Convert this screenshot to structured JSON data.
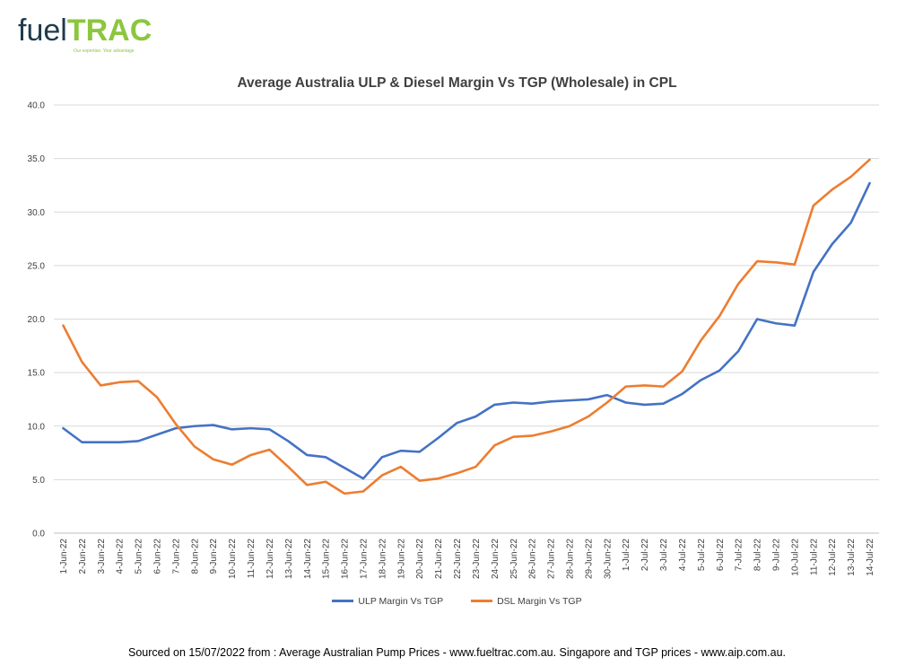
{
  "logo": {
    "text_a": "fuel",
    "text_b": "TRAC",
    "tagline": "Our expertise. Your advantage"
  },
  "colors": {
    "ulp": "#4472c4",
    "dsl": "#ed7d31",
    "grid": "#d9d9d9",
    "text": "#404040"
  },
  "chart_data": {
    "type": "line",
    "title": "Average Australia ULP & Diesel Margin Vs TGP (Wholesale) in CPL",
    "xlabel": "",
    "ylabel": "",
    "ylim": [
      0,
      40
    ],
    "yticks": [
      "0.0",
      "5.0",
      "10.0",
      "15.0",
      "20.0",
      "25.0",
      "30.0",
      "35.0",
      "40.0"
    ],
    "grid": true,
    "legend_position": "bottom",
    "categories": [
      "1-Jun-22",
      "2-Jun-22",
      "3-Jun-22",
      "4-Jun-22",
      "5-Jun-22",
      "6-Jun-22",
      "7-Jun-22",
      "8-Jun-22",
      "9-Jun-22",
      "10-Jun-22",
      "11-Jun-22",
      "12-Jun-22",
      "13-Jun-22",
      "14-Jun-22",
      "15-Jun-22",
      "16-Jun-22",
      "17-Jun-22",
      "18-Jun-22",
      "19-Jun-22",
      "20-Jun-22",
      "21-Jun-22",
      "22-Jun-22",
      "23-Jun-22",
      "24-Jun-22",
      "25-Jun-22",
      "26-Jun-22",
      "27-Jun-22",
      "28-Jun-22",
      "29-Jun-22",
      "30-Jun-22",
      "1-Jul-22",
      "2-Jul-22",
      "3-Jul-22",
      "4-Jul-22",
      "5-Jul-22",
      "6-Jul-22",
      "7-Jul-22",
      "8-Jul-22",
      "9-Jul-22",
      "10-Jul-22",
      "11-Jul-22",
      "12-Jul-22",
      "13-Jul-22",
      "14-Jul-22"
    ],
    "series": [
      {
        "name": "ULP Margin Vs TGP",
        "color": "#4472c4",
        "values": [
          9.8,
          8.5,
          8.5,
          8.5,
          8.6,
          9.2,
          9.8,
          10.0,
          10.1,
          9.7,
          9.8,
          9.7,
          8.6,
          7.3,
          7.1,
          6.1,
          5.1,
          7.1,
          7.7,
          7.6,
          8.9,
          10.3,
          10.9,
          12.0,
          12.2,
          12.1,
          12.3,
          12.4,
          12.5,
          12.9,
          12.2,
          12.0,
          12.1,
          13.0,
          14.3,
          15.2,
          17.0,
          20.0,
          19.6,
          19.4,
          24.4,
          27.0,
          29.0,
          32.7
        ]
      },
      {
        "name": "DSL Margin Vs TGP",
        "color": "#ed7d31",
        "values": [
          19.4,
          16.0,
          13.8,
          14.1,
          14.2,
          12.7,
          10.2,
          8.1,
          6.9,
          6.4,
          7.3,
          7.8,
          6.2,
          4.5,
          4.8,
          3.7,
          3.9,
          5.4,
          6.2,
          4.9,
          5.1,
          5.6,
          6.2,
          8.2,
          9.0,
          9.1,
          9.5,
          10.0,
          10.9,
          12.2,
          13.7,
          13.8,
          13.7,
          15.1,
          18.0,
          20.3,
          23.3,
          25.4,
          25.3,
          25.1,
          30.6,
          32.1,
          33.3,
          34.9
        ]
      }
    ]
  },
  "footer": {
    "source": "Sourced on 15/07/2022 from : Average Australian Pump Prices - www.fueltrac.com.au.  Singapore and TGP prices - www.aip.com.au."
  }
}
